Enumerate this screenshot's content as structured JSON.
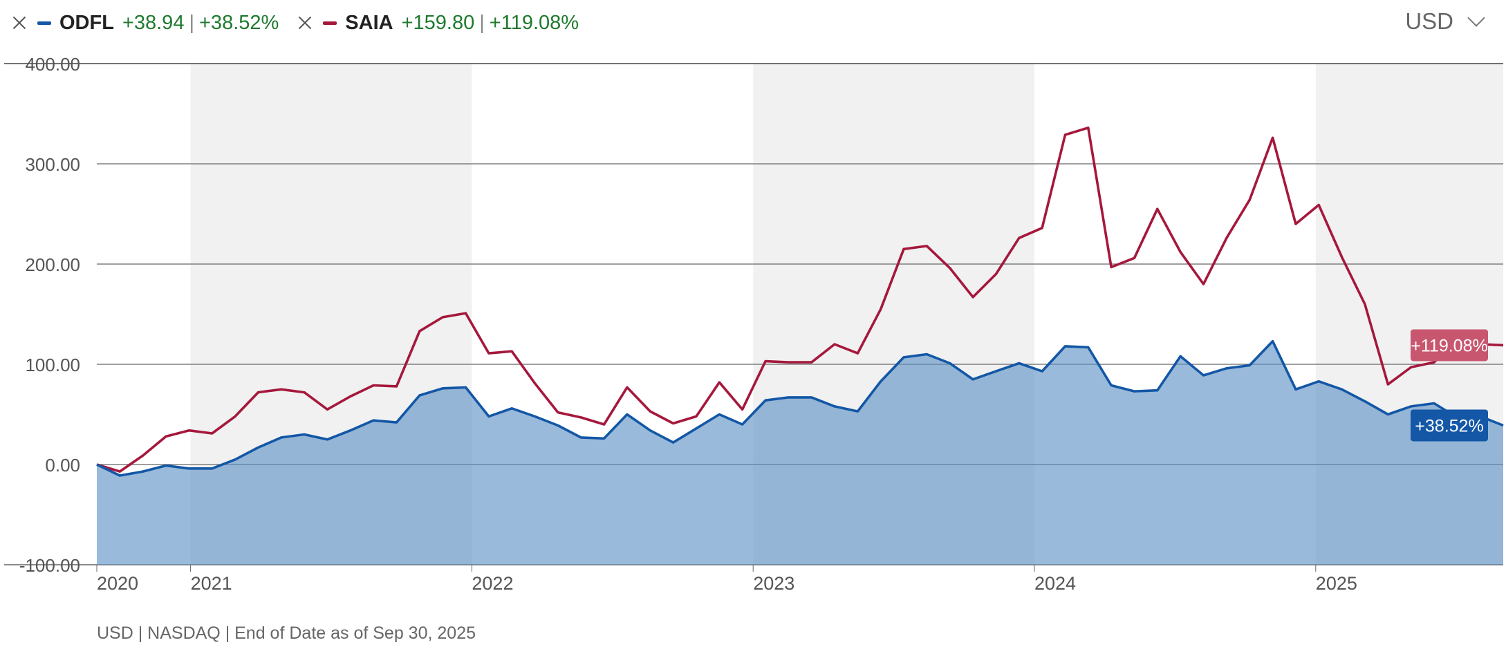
{
  "legend": {
    "items": [
      {
        "ticker": "ODFL",
        "change_abs": "+38.94",
        "change_pct": "+38.52%",
        "color": "#1357a6"
      },
      {
        "ticker": "SAIA",
        "change_abs": "+159.80",
        "change_pct": "+119.08%",
        "color": "#a5183c"
      }
    ],
    "separator": "|"
  },
  "currency": {
    "selected": "USD"
  },
  "footer": "USD | NASDAQ | End of Date as of Sep 30, 2025",
  "colors": {
    "odfl": "#1357a6",
    "odfl_fill": "#5b8fc4",
    "saia": "#a5183c",
    "saia_badge": "#c8566f",
    "band": "#f1f1f1",
    "positive": "#1f7a2e"
  },
  "chart_data": {
    "type": "line",
    "title": "",
    "xlabel": "",
    "ylabel": "",
    "ylim": [
      -100,
      400
    ],
    "y_ticks": [
      "400.00",
      "300.00",
      "200.00",
      "100.00",
      "0.00",
      "-100.00"
    ],
    "x_ticks": [
      "2020",
      "2021",
      "2022",
      "2023",
      "2024",
      "2025"
    ],
    "grid": true,
    "legend_position": "top-left",
    "x_start": "2020-09",
    "x_end": "2025-09",
    "series": [
      {
        "name": "ODFL",
        "end_label": "+38.52%",
        "values": [
          0,
          -11,
          -7,
          -1,
          -4,
          -4,
          5,
          17,
          27,
          30,
          25,
          34,
          44,
          42,
          69,
          76,
          77,
          48,
          56,
          48,
          39,
          27,
          26,
          50,
          34,
          22,
          36,
          50,
          40,
          64,
          67,
          67,
          58,
          53,
          83,
          107,
          110,
          101,
          85,
          93,
          101,
          93,
          118,
          117,
          79,
          73,
          74,
          108,
          89,
          96,
          99,
          123,
          75,
          83,
          75,
          63,
          50,
          58,
          61,
          47,
          48,
          39
        ]
      },
      {
        "name": "SAIA",
        "end_label": "+119.08%",
        "values": [
          0,
          -7,
          9,
          28,
          34,
          31,
          48,
          72,
          75,
          72,
          55,
          68,
          79,
          78,
          133,
          147,
          151,
          111,
          113,
          81,
          52,
          47,
          40,
          77,
          53,
          41,
          48,
          82,
          55,
          103,
          102,
          102,
          120,
          111,
          155,
          215,
          218,
          196,
          167,
          190,
          226,
          236,
          329,
          336,
          197,
          206,
          255,
          212,
          180,
          226,
          264,
          326,
          240,
          259,
          207,
          160,
          80,
          97,
          102,
          125,
          120,
          119
        ]
      }
    ]
  }
}
